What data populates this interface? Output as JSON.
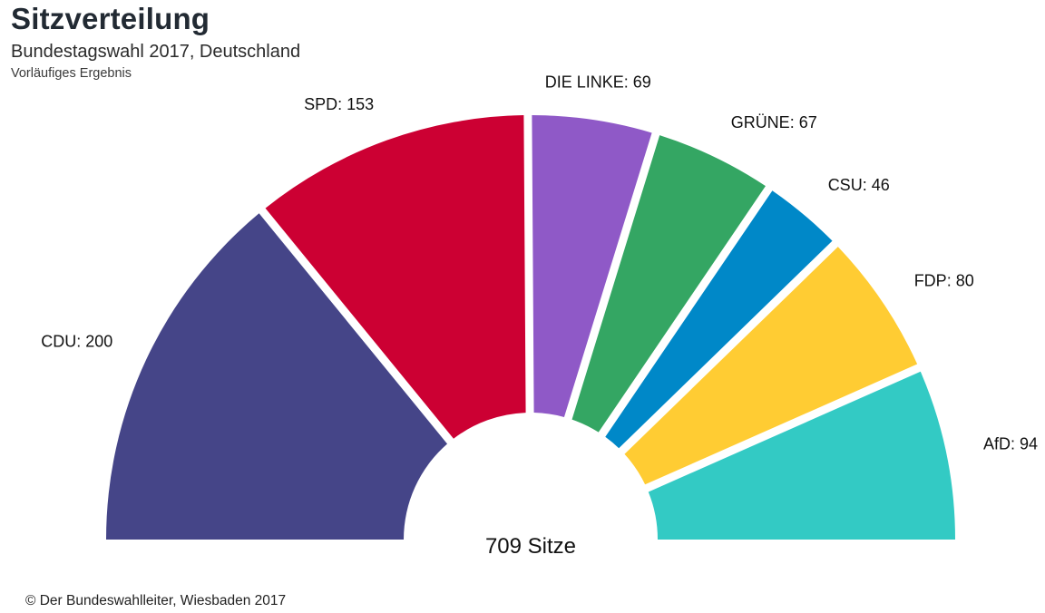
{
  "header": {
    "title": "Sitzverteilung",
    "subtitle": "Bundestagswahl 2017, Deutschland",
    "note": "Vorläufiges Ergebnis"
  },
  "chart_data": {
    "type": "pie",
    "variant": "semicircle-donut",
    "title": "Sitzverteilung",
    "subtitle": "Bundestagswahl 2017, Deutschland",
    "center_label": "709 Sitze",
    "total": 709,
    "slices": [
      {
        "name": "CDU",
        "label": "CDU: 200",
        "value": 200,
        "color": "#454588"
      },
      {
        "name": "SPD",
        "label": "SPD: 153",
        "value": 153,
        "color": "#cc0033"
      },
      {
        "name": "DIE LINKE",
        "label": "DIE LINKE: 69",
        "value": 69,
        "color": "#8f59c7"
      },
      {
        "name": "GRÜNE",
        "label": "GRÜNE: 67",
        "value": 67,
        "color": "#34a663"
      },
      {
        "name": "CSU",
        "label": "CSU: 46",
        "value": 46,
        "color": "#0088c8"
      },
      {
        "name": "FDP",
        "label": "FDP: 80",
        "value": 80,
        "color": "#ffcc33"
      },
      {
        "name": "AfD",
        "label": "AfD: 94",
        "value": 94,
        "color": "#33cac4"
      }
    ]
  },
  "footer": {
    "source": "© Der Bundeswahlleiter, Wiesbaden 2017"
  }
}
